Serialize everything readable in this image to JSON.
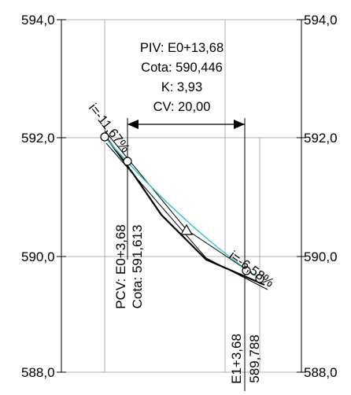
{
  "axis": {
    "left_labels": [
      "594,0",
      "592,0",
      "590,0",
      "588,0"
    ],
    "right_labels": [
      "594,0",
      "592,0",
      "590,0",
      "588,0"
    ]
  },
  "piv": {
    "station": "PIV: E0+13,68",
    "elevation": "Cota: 590,446",
    "k": "K: 3,93",
    "cv": "CV: 20,00"
  },
  "pcv": {
    "station": "PCV: E0+3,68",
    "elevation": "Cota: 591,613"
  },
  "ptv": {
    "station": "E1+3,68",
    "elevation": "589,788"
  },
  "grades": {
    "incoming": "i=-11,67%",
    "outgoing": "i=-6,58%"
  },
  "colors": {
    "curve": "#2ec4c4",
    "ink": "#000000",
    "grid": "#9a9a9a"
  }
}
